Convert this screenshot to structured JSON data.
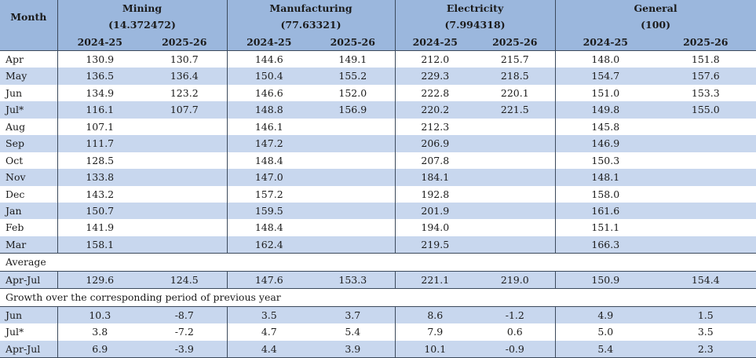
{
  "header": {
    "month_label": "Month",
    "groups": [
      {
        "name": "Mining",
        "weight": "(14.372472)"
      },
      {
        "name": "Manufacturing",
        "weight": "(77.63321)"
      },
      {
        "name": "Electricity",
        "weight": "(7.994318)"
      },
      {
        "name": "General",
        "weight": "(100)"
      }
    ],
    "years": [
      "2024-25",
      "2025-26"
    ]
  },
  "monthly_rows": [
    {
      "month": "Apr",
      "values": [
        "130.9",
        "130.7",
        "144.6",
        "149.1",
        "212.0",
        "215.7",
        "148.0",
        "151.8"
      ]
    },
    {
      "month": "May",
      "values": [
        "136.5",
        "136.4",
        "150.4",
        "155.2",
        "229.3",
        "218.5",
        "154.7",
        "157.6"
      ]
    },
    {
      "month": "Jun",
      "values": [
        "134.9",
        "123.2",
        "146.6",
        "152.0",
        "222.8",
        "220.1",
        "151.0",
        "153.3"
      ]
    },
    {
      "month": "Jul*",
      "values": [
        "116.1",
        "107.7",
        "148.8",
        "156.9",
        "220.2",
        "221.5",
        "149.8",
        "155.0"
      ]
    },
    {
      "month": "Aug",
      "values": [
        "107.1",
        "",
        "146.1",
        "",
        "212.3",
        "",
        "145.8",
        ""
      ]
    },
    {
      "month": "Sep",
      "values": [
        "111.7",
        "",
        "147.2",
        "",
        "206.9",
        "",
        "146.9",
        ""
      ]
    },
    {
      "month": "Oct",
      "values": [
        "128.5",
        "",
        "148.4",
        "",
        "207.8",
        "",
        "150.3",
        ""
      ]
    },
    {
      "month": "Nov",
      "values": [
        "133.8",
        "",
        "147.0",
        "",
        "184.1",
        "",
        "148.1",
        ""
      ]
    },
    {
      "month": "Dec",
      "values": [
        "143.2",
        "",
        "157.2",
        "",
        "192.8",
        "",
        "158.0",
        ""
      ]
    },
    {
      "month": "Jan",
      "values": [
        "150.7",
        "",
        "159.5",
        "",
        "201.9",
        "",
        "161.6",
        ""
      ]
    },
    {
      "month": "Feb",
      "values": [
        "141.9",
        "",
        "148.4",
        "",
        "194.0",
        "",
        "151.1",
        ""
      ]
    },
    {
      "month": "Mar",
      "values": [
        "158.1",
        "",
        "162.4",
        "",
        "219.5",
        "",
        "166.3",
        ""
      ]
    }
  ],
  "average": {
    "title": "Average",
    "rows": [
      {
        "month": "Apr-Jul",
        "values": [
          "129.6",
          "124.5",
          "147.6",
          "153.3",
          "221.1",
          "219.0",
          "150.9",
          "154.4"
        ]
      }
    ]
  },
  "growth": {
    "title": "Growth over the corresponding period of previous year",
    "rows": [
      {
        "month": "Jun",
        "values": [
          "10.3",
          "-8.7",
          "3.5",
          "3.7",
          "8.6",
          "-1.2",
          "4.9",
          "1.5"
        ]
      },
      {
        "month": "Jul*",
        "values": [
          "3.8",
          "-7.2",
          "4.7",
          "5.4",
          "7.9",
          "0.6",
          "5.0",
          "3.5"
        ]
      },
      {
        "month": "Apr-Jul",
        "values": [
          "6.9",
          "-3.9",
          "4.4",
          "3.9",
          "10.1",
          "-0.9",
          "5.4",
          "2.3"
        ]
      }
    ]
  },
  "colors": {
    "header_bg": "#9bb7dd",
    "stripe_bg": "#c8d7ee",
    "border": "#3c4a5c"
  }
}
